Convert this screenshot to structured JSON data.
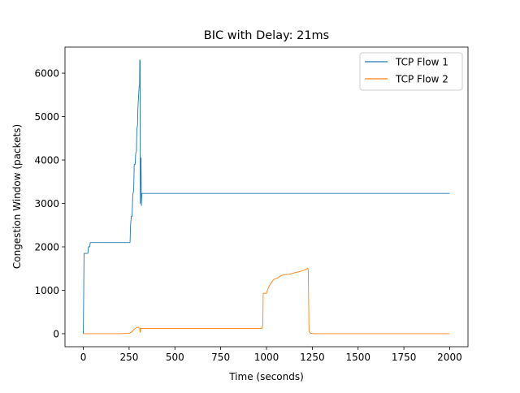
{
  "chart_data": {
    "type": "line",
    "title": "BIC with Delay: 21ms",
    "xlabel": "Time (seconds)",
    "ylabel": "Congestion Window (packets)",
    "xlim": [
      -100,
      2100
    ],
    "ylim": [
      -300,
      6600
    ],
    "xticks": [
      0,
      250,
      500,
      750,
      1000,
      1250,
      1500,
      1750,
      2000
    ],
    "yticks": [
      0,
      1000,
      2000,
      3000,
      4000,
      5000,
      6000
    ],
    "grid": false,
    "legend_position": "top-right",
    "series": [
      {
        "name": "TCP Flow 1",
        "color": "#1f77b4",
        "points": [
          [
            0,
            0
          ],
          [
            2,
            900
          ],
          [
            4,
            1850
          ],
          [
            25,
            1850
          ],
          [
            28,
            2000
          ],
          [
            35,
            2000
          ],
          [
            38,
            2100
          ],
          [
            50,
            2100
          ],
          [
            100,
            2100
          ],
          [
            150,
            2100
          ],
          [
            200,
            2100
          ],
          [
            255,
            2100
          ],
          [
            258,
            2500
          ],
          [
            262,
            2700
          ],
          [
            266,
            2700
          ],
          [
            270,
            3200
          ],
          [
            275,
            3300
          ],
          [
            278,
            3900
          ],
          [
            283,
            3900
          ],
          [
            286,
            4150
          ],
          [
            290,
            4200
          ],
          [
            292,
            4700
          ],
          [
            296,
            4800
          ],
          [
            298,
            5200
          ],
          [
            302,
            5500
          ],
          [
            305,
            5700
          ],
          [
            307,
            5700
          ],
          [
            308,
            6300
          ],
          [
            310,
            6300
          ],
          [
            311,
            3000
          ],
          [
            313,
            3900
          ],
          [
            315,
            4050
          ],
          [
            317,
            2950
          ],
          [
            320,
            3230
          ],
          [
            500,
            3230
          ],
          [
            1000,
            3230
          ],
          [
            1500,
            3230
          ],
          [
            2000,
            3230
          ]
        ]
      },
      {
        "name": "TCP Flow 2",
        "color": "#ff7f0e",
        "points": [
          [
            0,
            0
          ],
          [
            100,
            0
          ],
          [
            200,
            0
          ],
          [
            250,
            10
          ],
          [
            265,
            40
          ],
          [
            272,
            80
          ],
          [
            280,
            110
          ],
          [
            290,
            140
          ],
          [
            300,
            150
          ],
          [
            308,
            120
          ],
          [
            310,
            30
          ],
          [
            313,
            130
          ],
          [
            320,
            120
          ],
          [
            500,
            120
          ],
          [
            750,
            120
          ],
          [
            975,
            120
          ],
          [
            980,
            200
          ],
          [
            982,
            930
          ],
          [
            1000,
            930
          ],
          [
            1005,
            1000
          ],
          [
            1015,
            1100
          ],
          [
            1030,
            1200
          ],
          [
            1040,
            1250
          ],
          [
            1060,
            1280
          ],
          [
            1080,
            1340
          ],
          [
            1100,
            1360
          ],
          [
            1130,
            1370
          ],
          [
            1150,
            1400
          ],
          [
            1170,
            1420
          ],
          [
            1190,
            1440
          ],
          [
            1205,
            1460
          ],
          [
            1215,
            1480
          ],
          [
            1225,
            1510
          ],
          [
            1228,
            1460
          ],
          [
            1232,
            60
          ],
          [
            1240,
            10
          ],
          [
            1260,
            0
          ],
          [
            1500,
            0
          ],
          [
            1750,
            0
          ],
          [
            2000,
            0
          ]
        ]
      }
    ]
  }
}
